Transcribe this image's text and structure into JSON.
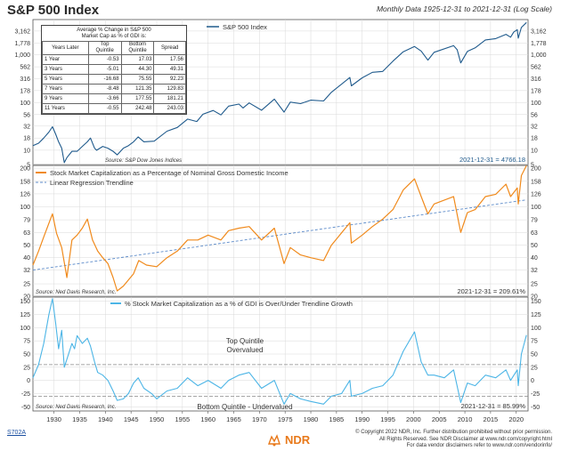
{
  "header": {
    "title": "S&P 500 Index",
    "subtitle": "Monthly Data 1925-12-31 to 2021-12-31 (Log Scale)"
  },
  "table": {
    "caption_line1": "Average % Change in S&P 500",
    "caption_line2": "Market Cap as % of GDI is:",
    "col_years": "Years Later",
    "col_top_line1": "Top",
    "col_top_line2": "Quintile",
    "col_bottom_line1": "Bottom",
    "col_bottom_line2": "Quintile",
    "col_spread": "Spread",
    "rows": [
      {
        "years": "1 Year",
        "top": "-0.53",
        "bottom": "17.03",
        "spread": "17.56"
      },
      {
        "years": "3 Years",
        "top": "-5.01",
        "bottom": "44.30",
        "spread": "49.31"
      },
      {
        "years": "5 Years",
        "top": "-16.68",
        "bottom": "75.55",
        "spread": "92.23"
      },
      {
        "years": "7 Years",
        "top": "-8.48",
        "bottom": "121.35",
        "spread": "129.83"
      },
      {
        "years": "9 Years",
        "top": "-3.66",
        "bottom": "177.55",
        "spread": "181.21"
      },
      {
        "years": "11 Years",
        "top": "-0.55",
        "bottom": "242.48",
        "spread": "243.03"
      }
    ]
  },
  "footer": {
    "code": "S702A",
    "brand": "NDR",
    "copyright_line1": "© Copyright 2022 NDR, Inc. Further distribution prohibited without prior permission.",
    "copyright_line2": "All Rights Reserved. See NDR Disclaimer at www.ndr.com/copyright.html",
    "copyright_line3": "For data vendor disclaimers refer to www.ndr.com/vendorinfo/"
  },
  "colors": {
    "sp500": "#1f5a8c",
    "gdi_ratio": "#f08a1c",
    "regression": "#5b8ac9",
    "deviation": "#4cb5e6",
    "quintile_line": "#888888",
    "grid": "#d9d9d9"
  },
  "chart_data": [
    {
      "type": "line",
      "scale": "log",
      "legend": [
        "S&P 500 Index"
      ],
      "legend_position": "top-left",
      "source": "Source: S&P Dow Jones Indices",
      "last_value_label": "2021-12-31 = 4766.18",
      "xlim": [
        1925.9,
        2022.3
      ],
      "ylim": [
        5,
        5500
      ],
      "y_ticks": [
        5,
        10,
        18,
        32,
        56,
        100,
        178,
        316,
        562,
        1000,
        1778,
        3162
      ],
      "y_tick_labels": [
        "5",
        "10",
        "18",
        "32",
        "56",
        "100",
        "178",
        "316",
        "562",
        "1,000",
        "1,778",
        "3,162"
      ],
      "grid": true,
      "series": [
        {
          "name": "S&P 500 Index",
          "x": [
            1925.9,
            1927,
            1928,
            1929.0,
            1929.7,
            1930.3,
            1930.9,
            1931.5,
            1932.0,
            1932.5,
            1933.5,
            1934.5,
            1935.5,
            1936.5,
            1937.1,
            1937.9,
            1938.3,
            1939.5,
            1940.5,
            1941.5,
            1942.3,
            1943.5,
            1944.5,
            1945.5,
            1946.4,
            1947.5,
            1949.5,
            1952,
            1954,
            1956,
            1957.8,
            1959,
            1961,
            1962.5,
            1964,
            1966,
            1966.8,
            1968,
            1970.4,
            1972.9,
            1974.8,
            1976,
            1978,
            1980,
            1982.5,
            1984,
            1987.6,
            1987.9,
            1990,
            1992,
            1994,
            1996,
            1998,
            2000.2,
            2001.5,
            2002.8,
            2004,
            2007.8,
            2008.5,
            2009.2,
            2010.5,
            2012,
            2014,
            2016,
            2018,
            2018.9,
            2019.5,
            2020.2,
            2020.4,
            2021,
            2021.99
          ],
          "y": [
            12.5,
            14,
            18,
            24,
            31,
            22,
            15,
            11,
            5.5,
            7,
            9.5,
            9.5,
            12,
            15,
            18,
            11,
            10,
            12,
            11,
            9.5,
            8,
            11,
            12.5,
            15,
            19,
            15,
            15.5,
            25,
            30,
            45,
            40,
            57,
            68,
            55,
            84,
            93,
            77,
            98,
            69,
            118,
            63,
            102,
            95,
            112,
            108,
            164,
            336,
            224,
            330,
            430,
            450,
            740,
            1160,
            1498,
            1200,
            777,
            1130,
            1565,
            1280,
            680,
            1180,
            1400,
            2060,
            2190,
            2700,
            2350,
            3000,
            3386,
            2237,
            3750,
            4766
          ]
        }
      ]
    },
    {
      "type": "line",
      "scale": "log",
      "legend": [
        "Stock Market Capitalization as a Percentage of Nominal Gross Domestic Income",
        "Linear Regression Trendline"
      ],
      "legend_position": "top-left",
      "source": "Source: Ned Davis Research, Inc.",
      "last_value_label": "2021-12-31 = 209.61%",
      "xlim": [
        1925.9,
        2022.3
      ],
      "ylim": [
        20,
        210
      ],
      "y_ticks": [
        20,
        25,
        32,
        40,
        50,
        63,
        79,
        100,
        126,
        158,
        200
      ],
      "grid": true,
      "series": [
        {
          "name": "Stock Market Capitalization as a Percentage of Nominal Gross Domestic Income",
          "x": [
            1925.9,
            1927,
            1928,
            1929.7,
            1930.5,
            1931.5,
            1932.5,
            1933.5,
            1934.5,
            1935.5,
            1936.5,
            1937.5,
            1938.5,
            1939.5,
            1940.5,
            1941.5,
            1942.3,
            1943.5,
            1945.5,
            1946.5,
            1948,
            1950,
            1952,
            1954,
            1956,
            1958,
            1960,
            1962.5,
            1964,
            1966,
            1968,
            1970.4,
            1972.9,
            1974.8,
            1976,
            1978,
            1980,
            1982.5,
            1984,
            1987.6,
            1987.9,
            1990,
            1992,
            1994,
            1996,
            1998,
            2000.2,
            2001.5,
            2002.8,
            2004,
            2007.8,
            2009.2,
            2010.5,
            2012,
            2014,
            2016,
            2018,
            2018.9,
            2020.2,
            2020.4,
            2021,
            2021.99
          ],
          "y": [
            35,
            45,
            58,
            88,
            62,
            48,
            28,
            55,
            60,
            68,
            80,
            55,
            45,
            40,
            36,
            28,
            22,
            24,
            30,
            38,
            35,
            34,
            40,
            45,
            55,
            55,
            60,
            55,
            65,
            68,
            70,
            55,
            68,
            36,
            48,
            42,
            40,
            38,
            50,
            75,
            52,
            60,
            70,
            80,
            95,
            135,
            165,
            120,
            88,
            105,
            120,
            63,
            90,
            95,
            120,
            125,
            150,
            120,
            140,
            105,
            175,
            209.61
          ]
        },
        {
          "name": "Linear Regression Trendline",
          "x": [
            1925.9,
            2021.99
          ],
          "y": [
            32,
            113
          ]
        }
      ]
    },
    {
      "type": "line",
      "scale": "linear",
      "legend": [
        "% Stock Market Capitalization as a % of GDI is Over/Under Trendline Growth"
      ],
      "legend_position": "top-left",
      "source": "Source: Ned Davis Research, Inc.",
      "last_value_label": "2021-12-31 = 85.99%",
      "annotations": [
        "Top Quintile",
        "Overvalued",
        "Bottom Quintile - Undervalued"
      ],
      "top_quintile_level": 30,
      "bottom_quintile_level": -30,
      "xlim": [
        1925.9,
        2022.3
      ],
      "ylim": [
        -58,
        158
      ],
      "y_ticks": [
        -50,
        -25,
        0,
        25,
        50,
        75,
        100,
        125,
        150
      ],
      "x_ticks": [
        1930,
        1935,
        1940,
        1945,
        1950,
        1955,
        1960,
        1965,
        1970,
        1975,
        1980,
        1985,
        1990,
        1995,
        2000,
        2005,
        2010,
        2015,
        2020
      ],
      "grid": true,
      "series": [
        {
          "name": "% Stock Market Capitalization as a % of GDI is Over/Under Trendline Growth",
          "x": [
            1925.9,
            1927,
            1928,
            1929.0,
            1929.7,
            1930.3,
            1930.9,
            1931.5,
            1932.0,
            1932.5,
            1933.5,
            1934.0,
            1934.5,
            1935.5,
            1936.5,
            1937.1,
            1937.9,
            1938.5,
            1939.5,
            1940.5,
            1941.5,
            1942.3,
            1943.5,
            1944.5,
            1945.5,
            1946.4,
            1947.5,
            1949,
            1950,
            1952,
            1954,
            1956,
            1958,
            1960,
            1962.5,
            1964,
            1966,
            1968,
            1970.4,
            1972.9,
            1974.8,
            1976,
            1978,
            1980,
            1982.5,
            1984,
            1986,
            1987.6,
            1987.9,
            1990,
            1992,
            1994,
            1996,
            1998,
            2000.2,
            2001.5,
            2002.8,
            2004,
            2006,
            2007.8,
            2009.2,
            2010.5,
            2012,
            2014,
            2016,
            2018,
            2018.9,
            2020.2,
            2020.4,
            2021,
            2021.99
          ],
          "y": [
            5,
            30,
            70,
            125,
            155,
            110,
            60,
            95,
            25,
            40,
            70,
            60,
            85,
            70,
            80,
            65,
            35,
            15,
            10,
            0,
            -20,
            -38,
            -35,
            -25,
            -5,
            5,
            -15,
            -25,
            -35,
            -20,
            -15,
            5,
            -10,
            0,
            -15,
            0,
            10,
            15,
            -15,
            0,
            -45,
            -25,
            -35,
            -40,
            -45,
            -30,
            -25,
            0,
            -30,
            -25,
            -15,
            -10,
            10,
            55,
            92,
            35,
            10,
            10,
            5,
            20,
            -42,
            -5,
            -10,
            10,
            5,
            20,
            0,
            20,
            -10,
            50,
            85.99
          ]
        }
      ]
    }
  ]
}
